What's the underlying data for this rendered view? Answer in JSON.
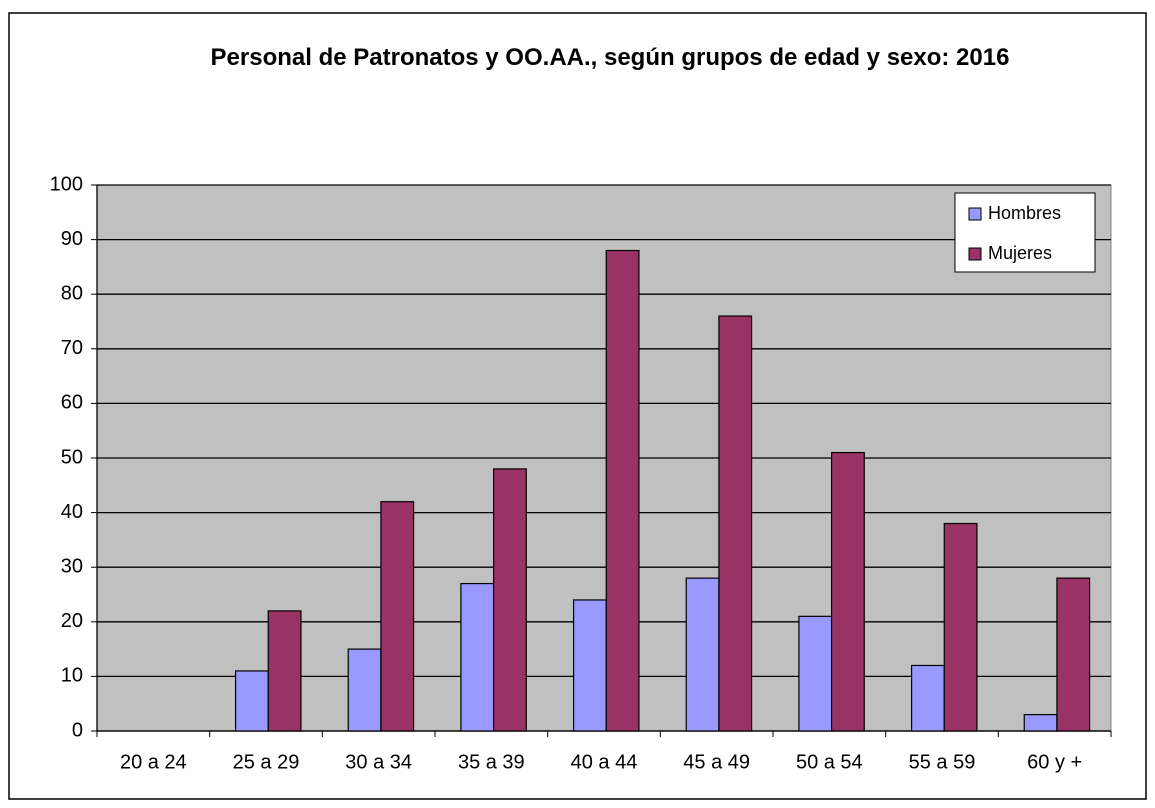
{
  "chart_data": {
    "type": "bar",
    "title": "Personal de Patronatos y OO.AA., según grupos de edad y sexo: 2016",
    "categories": [
      "20 a 24",
      "25 a 29",
      "30 a 34",
      "35 a 39",
      "40 a 44",
      "45 a 49",
      "50 a 54",
      "55 a 59",
      "60 y +"
    ],
    "series": [
      {
        "name": "Hombres",
        "color": "#9999ff",
        "values": [
          0,
          11,
          15,
          27,
          24,
          28,
          21,
          12,
          3
        ]
      },
      {
        "name": "Mujeres",
        "color": "#993366",
        "values": [
          0,
          22,
          42,
          48,
          88,
          76,
          51,
          38,
          28
        ]
      }
    ],
    "ylim": [
      0,
      100
    ],
    "yticks": [
      0,
      10,
      20,
      30,
      40,
      50,
      60,
      70,
      80,
      90,
      100
    ],
    "grid": true,
    "legend": "top-right"
  }
}
